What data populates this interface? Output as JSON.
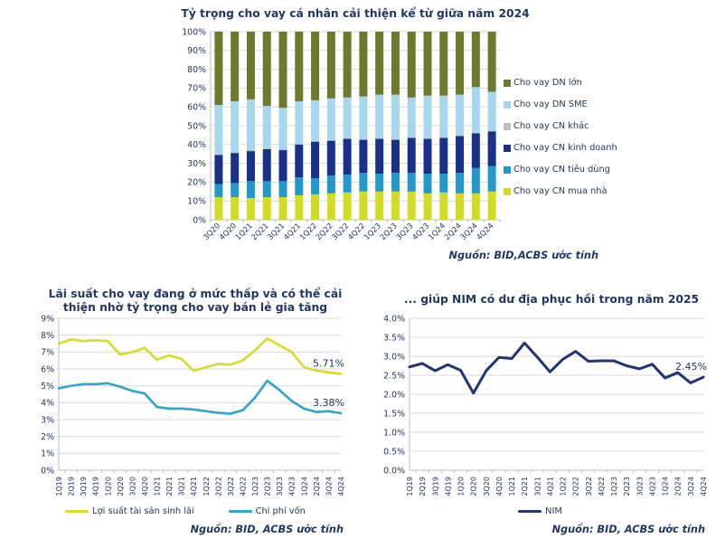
{
  "style": {
    "text": "#1f3864",
    "grid": "#d9d9d9",
    "axis": "#bfbfbf",
    "background": "#ffffff"
  },
  "chart_data": [
    {
      "id": "loan-mix",
      "type": "bar",
      "stacked": true,
      "title": "Tỷ trọng cho vay cá nhân cải thiện kể từ giữa năm 2024",
      "source": "Nguồn: BID,ACBS ước tính",
      "ylim": [
        0,
        100
      ],
      "ytick_step": 10,
      "ytick_decimals": 0,
      "grid": true,
      "legend_position": "right",
      "categories": [
        "3Q20",
        "4Q20",
        "1Q21",
        "2Q21",
        "3Q21",
        "4Q21",
        "1Q22",
        "2Q22",
        "3Q22",
        "4Q22",
        "1Q23",
        "2Q23",
        "3Q23",
        "4Q23",
        "1Q24",
        "2Q24",
        "3Q24",
        "4Q24"
      ],
      "series": [
        {
          "name": "Cho vay CN mua nhà",
          "color": "#d2db26",
          "values": [
            12,
            12,
            11.5,
            12,
            12,
            13,
            13.5,
            14,
            14.5,
            15,
            15,
            15,
            15,
            14,
            14.5,
            14,
            14,
            15
          ]
        },
        {
          "name": "Cho vay CN tiêu dùng",
          "color": "#2399cb",
          "values": [
            7,
            7.5,
            9,
            8.5,
            8.5,
            9.5,
            8.5,
            9.5,
            9.5,
            10,
            9.5,
            10,
            10,
            10.5,
            10,
            11,
            13.5,
            13.5
          ]
        },
        {
          "name": "Cho vay CN kinh doanh",
          "color": "#1a3189",
          "values": [
            15.5,
            16,
            16,
            17,
            16.5,
            17.5,
            19.5,
            18.5,
            19,
            17.5,
            18.5,
            17.5,
            18.5,
            18.5,
            19,
            19.5,
            18.5,
            18.5
          ]
        },
        {
          "name": "Cho vay CN khác",
          "color": "#bfbfbf",
          "values": [
            0.5,
            0.5,
            0.5,
            0.5,
            0.5,
            0.5,
            0.5,
            0.5,
            0.5,
            0.5,
            0.5,
            0.5,
            0.5,
            0.5,
            0.5,
            0.5,
            0.5,
            0.5
          ]
        },
        {
          "name": "Cho vay DN SME",
          "color": "#a7d7ec",
          "values": [
            26,
            27,
            27,
            22.5,
            22,
            22.5,
            21.5,
            22,
            21.5,
            22.5,
            23,
            23.5,
            21,
            22.5,
            22,
            21.5,
            24,
            20.5
          ]
        },
        {
          "name": "Cho vay DN lớn",
          "color": "#6d7a2e",
          "values": [
            39,
            37,
            36,
            39.5,
            40.5,
            37,
            36.5,
            35.5,
            35,
            34.5,
            33.5,
            33.5,
            35,
            34,
            34,
            33.5,
            29.5,
            32
          ]
        }
      ]
    },
    {
      "id": "lending-rates",
      "type": "line",
      "title": "Lãi suất cho vay đang ở mức thấp và có thể cải thiện nhờ tỷ trọng cho vay bán lẻ gia tăng",
      "source": "Nguồn: BID, ACBS ước tính",
      "ylim": [
        0,
        9
      ],
      "ytick_step": 1,
      "ytick_decimals": 0,
      "grid": true,
      "legend_position": "bottom",
      "x": [
        "1Q19",
        "2Q19",
        "3Q19",
        "4Q19",
        "1Q20",
        "2Q20",
        "3Q20",
        "4Q20",
        "1Q21",
        "2Q21",
        "3Q21",
        "4Q21",
        "1Q22",
        "2Q22",
        "3Q22",
        "4Q22",
        "1Q23",
        "2Q23",
        "3Q23",
        "4Q23",
        "1Q24",
        "2Q24",
        "3Q24",
        "4Q24"
      ],
      "series": [
        {
          "name": "Lợi suất tài sản sinh lãi",
          "color": "#d8dc2e",
          "annotation": "5.71%",
          "values": [
            7.5,
            7.75,
            7.65,
            7.7,
            7.65,
            6.85,
            7.0,
            7.25,
            6.55,
            6.8,
            6.6,
            5.9,
            6.1,
            6.3,
            6.25,
            6.5,
            7.1,
            7.8,
            7.4,
            7.0,
            6.1,
            5.9,
            5.8,
            5.71
          ]
        },
        {
          "name": "Chi phí vốn",
          "color": "#33a6ca",
          "annotation": "3.38%",
          "values": [
            4.85,
            5.0,
            5.1,
            5.1,
            5.15,
            4.95,
            4.7,
            4.55,
            3.75,
            3.65,
            3.65,
            3.6,
            3.5,
            3.4,
            3.35,
            3.55,
            4.3,
            5.3,
            4.75,
            4.1,
            3.65,
            3.45,
            3.5,
            3.38
          ]
        }
      ]
    },
    {
      "id": "nim",
      "type": "line",
      "title": "... giúp NIM có dư địa phục hồi trong năm 2025",
      "source": "Nguồn: BID, ACBS ước tính",
      "ylim": [
        0,
        4
      ],
      "ytick_step": 0.5,
      "ytick_decimals": 1,
      "grid": true,
      "legend_position": "bottom",
      "x": [
        "1Q19",
        "2Q19",
        "3Q19",
        "4Q19",
        "1Q20",
        "2Q20",
        "3Q20",
        "4Q20",
        "1Q21",
        "2Q21",
        "3Q21",
        "4Q21",
        "1Q22",
        "2Q22",
        "3Q22",
        "4Q22",
        "1Q23",
        "2Q23",
        "3Q23",
        "4Q23",
        "1Q24",
        "2Q24",
        "3Q24",
        "4Q24"
      ],
      "series": [
        {
          "name": "NIM",
          "color": "#1f3575",
          "annotation": "2.45%",
          "values": [
            2.72,
            2.81,
            2.62,
            2.78,
            2.63,
            2.03,
            2.62,
            2.97,
            2.94,
            3.35,
            2.98,
            2.59,
            2.92,
            3.13,
            2.87,
            2.88,
            2.88,
            2.75,
            2.67,
            2.79,
            2.43,
            2.57,
            2.3,
            2.45
          ]
        }
      ]
    }
  ]
}
